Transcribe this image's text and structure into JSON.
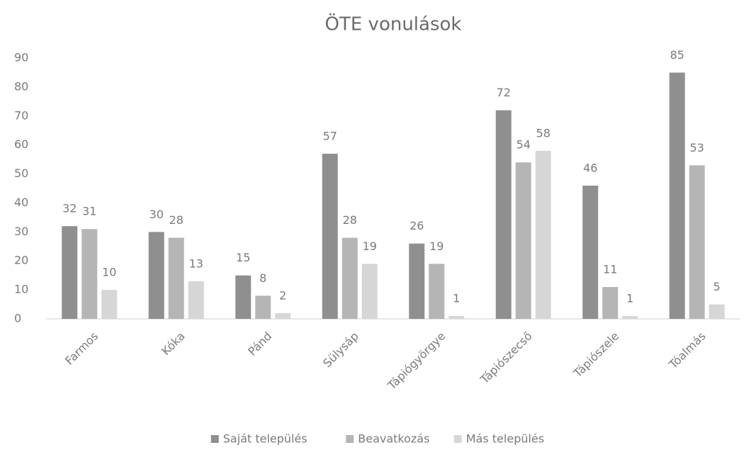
{
  "chart_data": {
    "type": "bar",
    "title": "ÖTE vonulások",
    "categories": [
      "Farmos",
      "Kóka",
      "Pánd",
      "Sülysáp",
      "Tápiógyörgye",
      "Tápiószecső",
      "Tápiószele",
      "Tóalmás"
    ],
    "series": [
      {
        "name": "Saját település",
        "color": "#8f8f8f",
        "values": [
          32,
          30,
          15,
          57,
          26,
          72,
          46,
          85
        ]
      },
      {
        "name": "Beavatkozás",
        "color": "#b5b5b5",
        "values": [
          31,
          28,
          8,
          28,
          19,
          54,
          11,
          53
        ]
      },
      {
        "name": "Más település",
        "color": "#d6d6d6",
        "values": [
          10,
          13,
          2,
          19,
          1,
          58,
          1,
          5
        ]
      }
    ],
    "ylim": [
      0,
      90
    ],
    "yticks": [
      0,
      10,
      20,
      30,
      40,
      50,
      60,
      70,
      80,
      90
    ],
    "grid": false,
    "legend": "bottom"
  }
}
